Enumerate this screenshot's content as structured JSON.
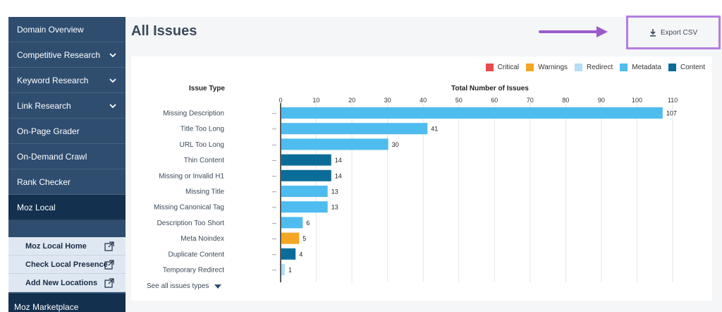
{
  "sidebar": {
    "items": [
      {
        "label": "Domain Overview",
        "chevron": false
      },
      {
        "label": "Competitive Research",
        "chevron": true
      },
      {
        "label": "Keyword Research",
        "chevron": true
      },
      {
        "label": "Link Research",
        "chevron": true
      },
      {
        "label": "On-Page Grader",
        "chevron": false
      },
      {
        "label": "On-Demand Crawl",
        "chevron": false
      },
      {
        "label": "Rank Checker",
        "chevron": false
      },
      {
        "label": "Moz Local",
        "chevron": false
      }
    ],
    "sub_items": [
      {
        "label": "Moz Local Home"
      },
      {
        "label": "Check Local Presence"
      },
      {
        "label": "Add New Locations"
      }
    ],
    "marketplace": "Moz Marketplace"
  },
  "header": {
    "title": "All Issues",
    "export_label": "Export CSV"
  },
  "legend": [
    {
      "label": "Critical",
      "color": "#e84b4b"
    },
    {
      "label": "Warnings",
      "color": "#f5a623"
    },
    {
      "label": "Redirect",
      "color": "#b3def5"
    },
    {
      "label": "Metadata",
      "color": "#4ebcef"
    },
    {
      "label": "Content",
      "color": "#0c6c98"
    }
  ],
  "table": {
    "issue_type_header": "Issue Type",
    "total_header": "Total Number of Issues",
    "placeholder": "--"
  },
  "chart_data": {
    "type": "bar",
    "orientation": "horizontal",
    "categories": [
      "Missing Description",
      "Title Too Long",
      "URL Too Long",
      "Thin Content",
      "Missing or Invalid H1",
      "Missing Title",
      "Missing Canonical Tag",
      "Description Too Short",
      "Meta Noindex",
      "Duplicate Content",
      "Temporary Redirect"
    ],
    "values": [
      107,
      41,
      30,
      14,
      14,
      13,
      13,
      6,
      5,
      4,
      1
    ],
    "groups": [
      "Metadata",
      "Metadata",
      "Metadata",
      "Content",
      "Content",
      "Metadata",
      "Metadata",
      "Metadata",
      "Warnings",
      "Content",
      "Redirect"
    ],
    "xlim": [
      0,
      110
    ],
    "ticks": [
      0,
      10,
      20,
      30,
      40,
      50,
      60,
      70,
      80,
      90,
      100,
      110
    ],
    "grid": true
  },
  "footer": {
    "see_all": "See all issues types"
  }
}
